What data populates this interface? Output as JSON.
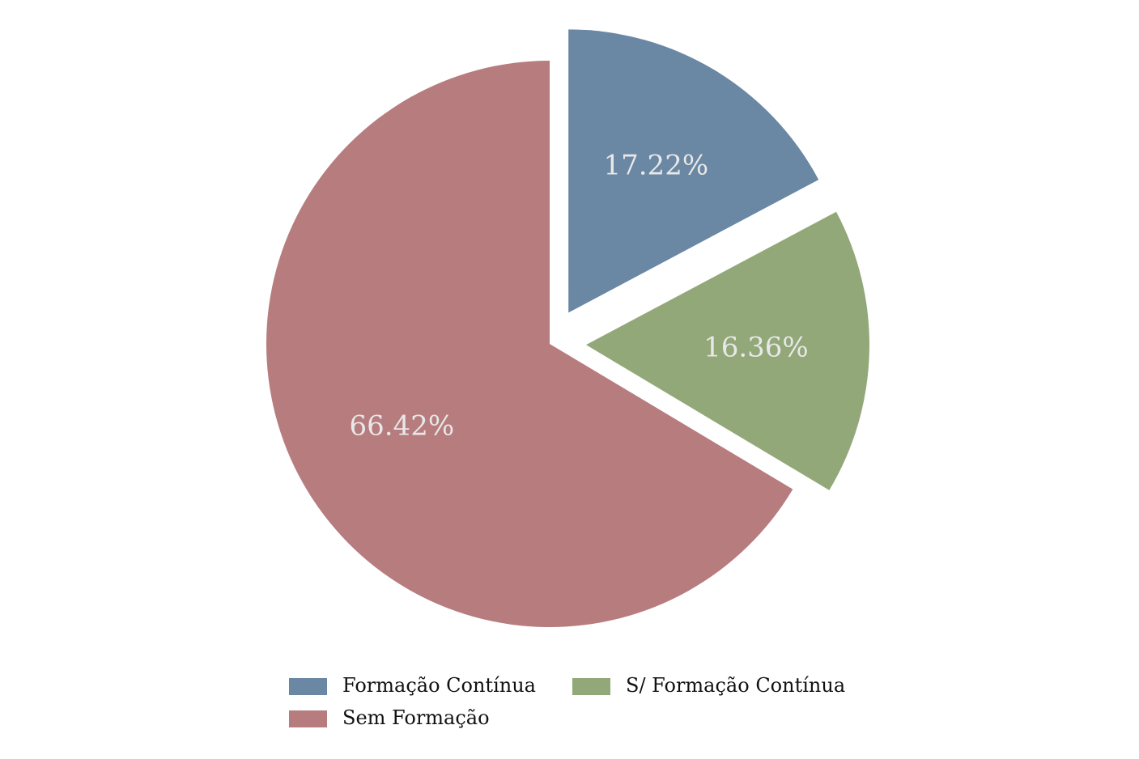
{
  "chart_data": {
    "type": "pie",
    "slices": [
      {
        "label": "Formação Contínua",
        "value": 17.22,
        "display": "17.22%",
        "color": "#6a87a3",
        "exploded": true
      },
      {
        "label": "S/ Formação Contínua",
        "value": 16.36,
        "display": "16.36%",
        "color": "#92a878",
        "exploded": true
      },
      {
        "label": "Sem Formação",
        "value": 66.42,
        "display": "66.42%",
        "color": "#b77c7e",
        "exploded": false
      }
    ],
    "start_angle": "12 o'clock",
    "direction": "clockwise",
    "legend_position": "bottom",
    "legend_columns": 2
  }
}
